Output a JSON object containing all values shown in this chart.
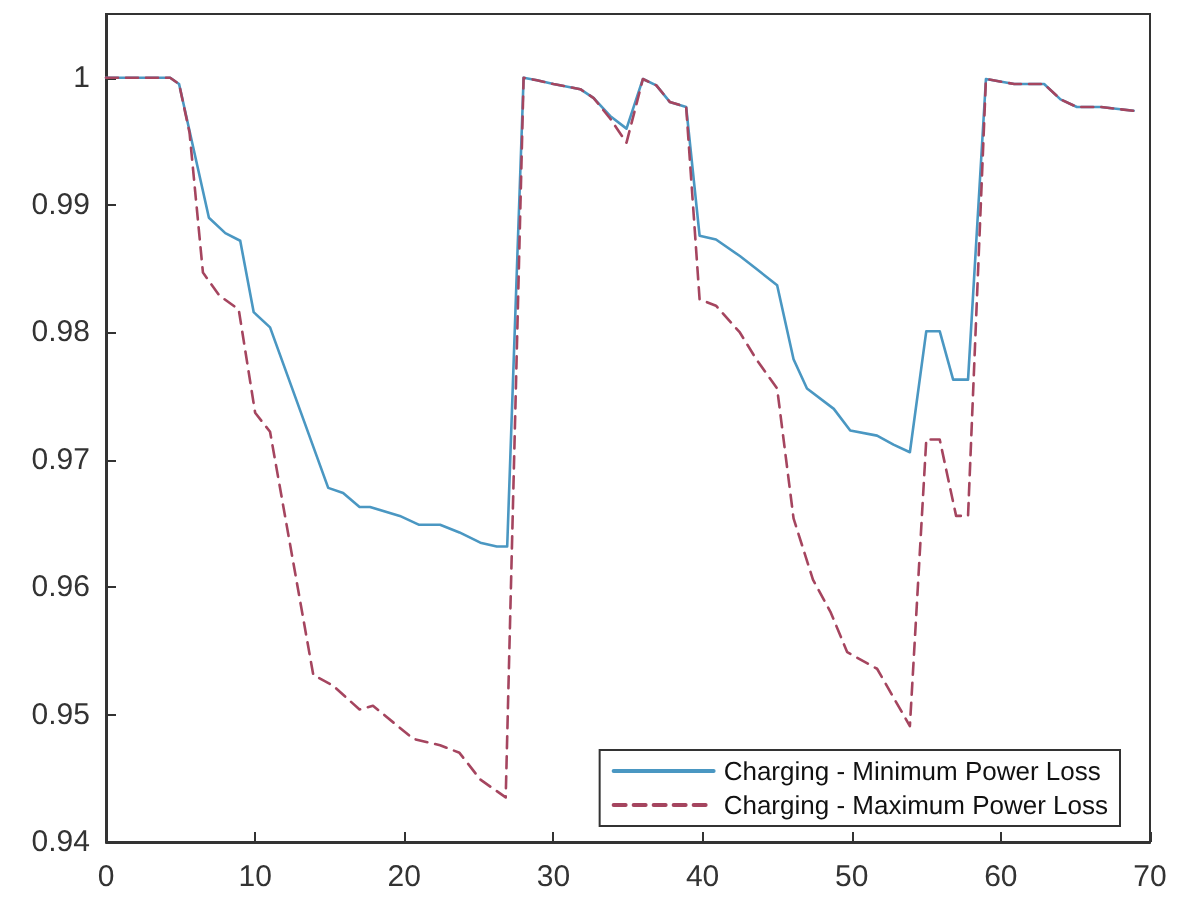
{
  "chart_data": {
    "type": "line",
    "xlim": [
      0,
      70
    ],
    "xticks": [
      0,
      10,
      20,
      30,
      40,
      50,
      60,
      70
    ],
    "ylim": [
      0.94,
      1.005
    ],
    "yticks": [
      0.94,
      0.95,
      0.96,
      0.97,
      0.98,
      0.99,
      1
    ],
    "grid": false,
    "legend": "bottom right",
    "marker": "none",
    "series": [
      {
        "name": "Charging - Minimum Power Loss",
        "color": "#4a97c2",
        "line_style": "solid",
        "x": [
          0,
          3.1,
          4.3,
          4.9,
          6.9,
          8.0,
          9.0,
          9.9,
          11.0,
          14.9,
          15.9,
          17.0,
          17.7,
          19.7,
          21.0,
          22.4,
          23.7,
          25.1,
          26.2,
          26.9,
          28.0,
          28.9,
          30.0,
          31.8,
          32.7,
          33.8,
          34.9,
          36.0,
          36.9,
          37.8,
          38.9,
          39.8,
          40.9,
          42.5,
          43.6,
          45.0,
          46.1,
          47.0,
          48.8,
          49.9,
          51.7,
          52.8,
          53.9,
          55.0,
          55.9,
          56.8,
          57.8,
          59.0,
          60.9,
          62.9,
          64.0,
          65.1,
          66.7,
          68.9
        ],
        "values": [
          1.0,
          1.0,
          1.0,
          0.9995,
          0.989,
          0.9878,
          0.9872,
          0.9816,
          0.9804,
          0.9678,
          0.9674,
          0.9663,
          0.9663,
          0.9656,
          0.9649,
          0.9649,
          0.9643,
          0.9635,
          0.9632,
          0.9632,
          1.0,
          0.9998,
          0.9995,
          0.9991,
          0.9984,
          0.997,
          0.996,
          0.9999,
          0.9994,
          0.9981,
          0.9977,
          0.9876,
          0.9873,
          0.986,
          0.985,
          0.9837,
          0.9779,
          0.9756,
          0.974,
          0.9723,
          0.9719,
          0.9712,
          0.9706,
          0.9801,
          0.9801,
          0.9763,
          0.9763,
          0.9999,
          0.9995,
          0.9995,
          0.9983,
          0.9977,
          0.9977,
          0.9974
        ]
      },
      {
        "name": "Charging - Maximum Power Loss",
        "color": "#a5455f",
        "line_style": "dashed",
        "x": [
          0,
          3.1,
          4.3,
          4.9,
          5.6,
          6.5,
          7.6,
          8.9,
          10.0,
          11.0,
          13.9,
          15.2,
          17.0,
          17.9,
          20.6,
          22.4,
          23.7,
          25.1,
          26.8,
          28.0,
          28.9,
          30.0,
          31.8,
          32.7,
          33.8,
          34.9,
          36.0,
          36.9,
          37.8,
          38.9,
          39.8,
          40.9,
          42.5,
          43.6,
          45.0,
          46.1,
          47.4,
          48.6,
          49.7,
          51.7,
          53.9,
          55.0,
          55.9,
          57.0,
          57.8,
          59.0,
          60.9,
          62.9,
          64.0,
          65.1,
          66.7,
          68.9
        ],
        "values": [
          1.0,
          1.0,
          1.0,
          0.9995,
          0.9957,
          0.9847,
          0.9829,
          0.9818,
          0.9737,
          0.9722,
          0.9531,
          0.9523,
          0.9504,
          0.9507,
          0.9481,
          0.9476,
          0.947,
          0.9449,
          0.9435,
          1.0,
          0.9998,
          0.9995,
          0.9991,
          0.9984,
          0.9968,
          0.9949,
          0.9999,
          0.9994,
          0.9981,
          0.9977,
          0.9826,
          0.9821,
          0.98,
          0.9779,
          0.9756,
          0.9654,
          0.9606,
          0.958,
          0.9549,
          0.9536,
          0.9491,
          0.9716,
          0.9716,
          0.9656,
          0.9656,
          0.9999,
          0.9995,
          0.9995,
          0.9983,
          0.9977,
          0.9977,
          0.9974
        ]
      }
    ]
  }
}
